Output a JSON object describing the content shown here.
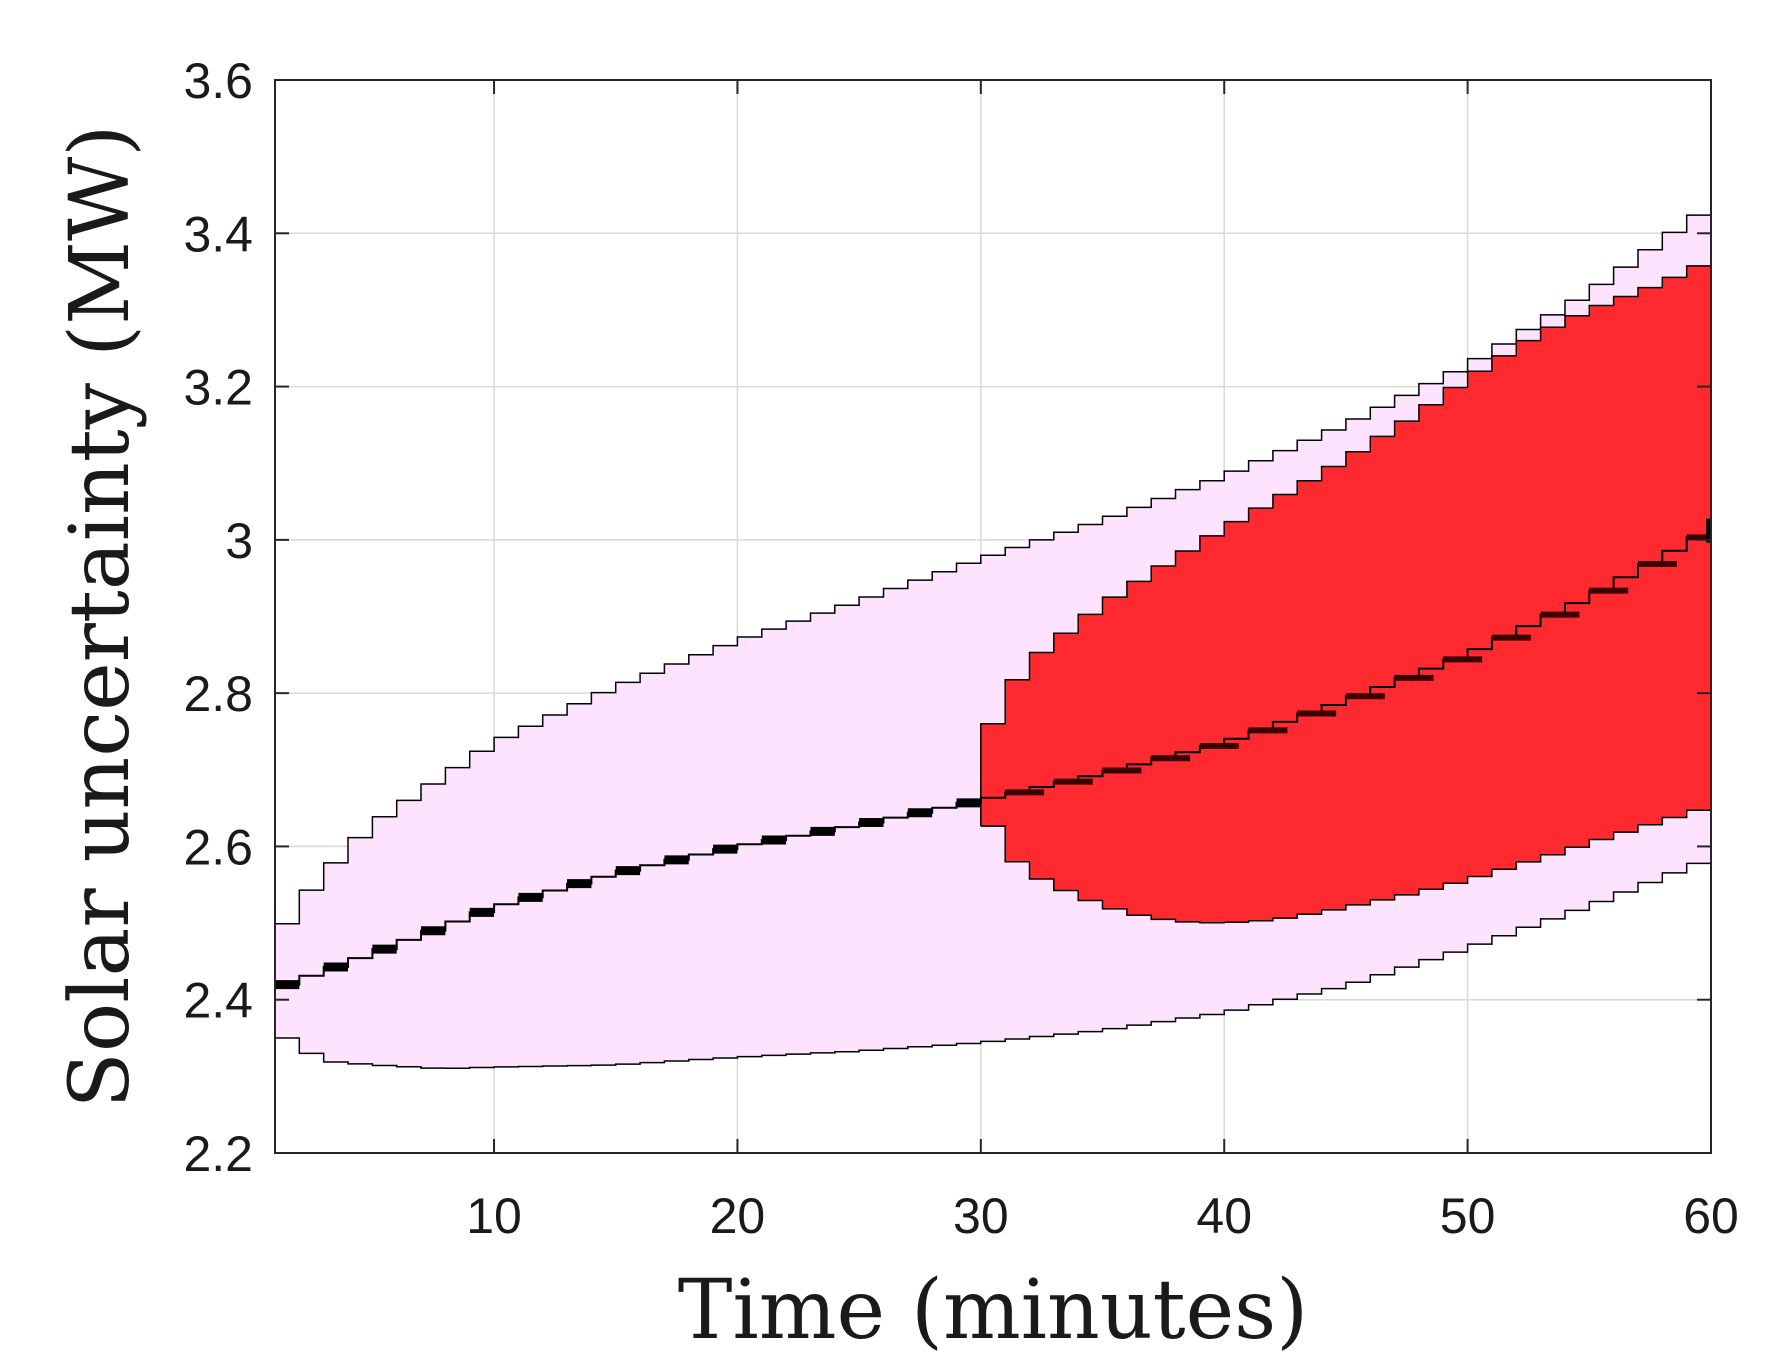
{
  "chart_data": {
    "type": "area",
    "xlabel": "Time (minutes)",
    "ylabel": "Solar uncertainty (MW)",
    "xlim": [
      1,
      60
    ],
    "ylim": [
      2.2,
      3.6
    ],
    "xticks": [
      "10",
      "20",
      "30",
      "40",
      "50",
      "60"
    ],
    "yticks": [
      "2.2",
      "2.4",
      "2.6",
      "2.8",
      "3",
      "3.2",
      "3.4",
      "3.6"
    ],
    "grid": true,
    "colors": {
      "outer_band": "#fde3fd",
      "inner_band": "#ff2a2f",
      "line": "#000000",
      "edge": "#000000"
    },
    "series": [
      {
        "role": "outer-band",
        "upper": [
          [
            1,
            2.474
          ],
          [
            2,
            2.524
          ],
          [
            3,
            2.562
          ],
          [
            5,
            2.628
          ],
          [
            10,
            2.735
          ],
          [
            15,
            2.808
          ],
          [
            20,
            2.868
          ],
          [
            25,
            2.92
          ],
          [
            30,
            2.975
          ],
          [
            35,
            3.025
          ],
          [
            40,
            3.083
          ],
          [
            45,
            3.15
          ],
          [
            50,
            3.227
          ],
          [
            55,
            3.322
          ],
          [
            60,
            3.435
          ]
        ],
        "lower": [
          [
            1,
            2.36
          ],
          [
            3,
            2.32
          ],
          [
            5,
            2.315
          ],
          [
            8,
            2.31
          ],
          [
            10,
            2.312
          ],
          [
            15,
            2.315
          ],
          [
            20,
            2.325
          ],
          [
            25,
            2.333
          ],
          [
            30,
            2.344
          ],
          [
            35,
            2.36
          ],
          [
            40,
            2.383
          ],
          [
            45,
            2.418
          ],
          [
            50,
            2.467
          ],
          [
            55,
            2.522
          ],
          [
            60,
            2.584
          ]
        ]
      },
      {
        "role": "inner-band",
        "upper": [
          [
            30,
            2.725
          ],
          [
            31,
            2.795
          ],
          [
            32,
            2.84
          ],
          [
            33,
            2.866
          ],
          [
            35,
            2.915
          ],
          [
            37,
            2.956
          ],
          [
            40,
            3.015
          ],
          [
            43,
            3.068
          ],
          [
            45,
            3.105
          ],
          [
            48,
            3.165
          ],
          [
            50,
            3.21
          ],
          [
            53,
            3.27
          ],
          [
            55,
            3.3
          ],
          [
            58,
            3.335
          ],
          [
            60,
            3.365
          ]
        ],
        "lower": [
          [
            30,
            2.658
          ],
          [
            31,
            2.595
          ],
          [
            32,
            2.565
          ],
          [
            34,
            2.535
          ],
          [
            36,
            2.513
          ],
          [
            38,
            2.502
          ],
          [
            40,
            2.5
          ],
          [
            42,
            2.504
          ],
          [
            44,
            2.514
          ],
          [
            46,
            2.527
          ],
          [
            48,
            2.54
          ],
          [
            50,
            2.556
          ],
          [
            52,
            2.575
          ],
          [
            54,
            2.594
          ],
          [
            56,
            2.614
          ],
          [
            58,
            2.633
          ],
          [
            60,
            2.652
          ]
        ]
      },
      {
        "role": "forecast-line",
        "points": [
          [
            1,
            2.414
          ],
          [
            5,
            2.46
          ],
          [
            10,
            2.52
          ],
          [
            15,
            2.565
          ],
          [
            20,
            2.6
          ],
          [
            25,
            2.628
          ],
          [
            30,
            2.66
          ],
          [
            35,
            2.695
          ],
          [
            40,
            2.735
          ],
          [
            45,
            2.79
          ],
          [
            50,
            2.85
          ],
          [
            55,
            2.925
          ],
          [
            60,
            3.012
          ]
        ]
      }
    ]
  }
}
